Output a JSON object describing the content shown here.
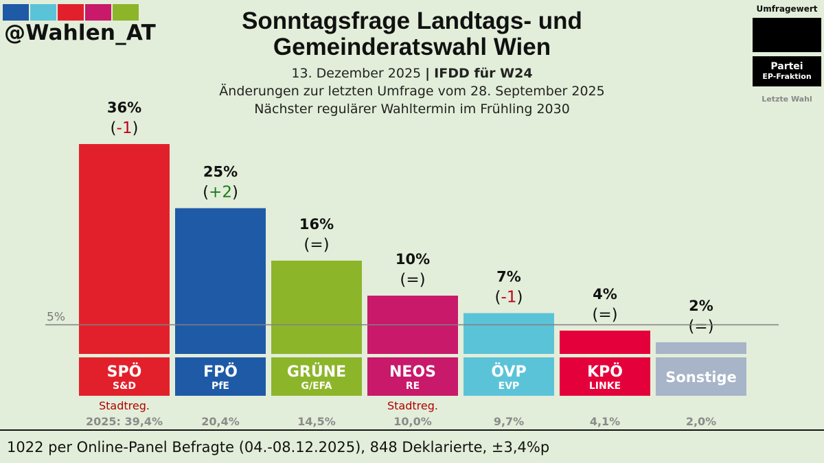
{
  "header": {
    "handle": "@Wahlen_AT",
    "logo_colors": [
      "#1f5aa6",
      "#5bc3d8",
      "#e2202c",
      "#c8196b",
      "#8db52a"
    ],
    "title_line1": "Sonntagsfrage Landtags- und",
    "title_line2": "Gemeinderatswahl Wien",
    "date": "13. Dezember 2025",
    "separator": "|",
    "source": "IFDD für W24",
    "changes_note": "Änderungen zur letzten Umfrage vom 28. September 2025",
    "next_election": "Nächster regulärer Wahltermin im Frühling 2030"
  },
  "legend": {
    "poll_value": "Umfragewert",
    "party": "Partei",
    "ep_group": "EP-Fraktion",
    "last_election": "Letzte Wahl"
  },
  "chart_data": {
    "type": "bar",
    "categories": [
      "SPÖ",
      "FPÖ",
      "GRÜNE",
      "NEOS",
      "ÖVP",
      "KPÖ",
      "Sonstige"
    ],
    "values": [
      36,
      25,
      16,
      10,
      7,
      4,
      2
    ],
    "value_labels": [
      "36%",
      "25%",
      "16%",
      "10%",
      "7%",
      "4%",
      "2%"
    ],
    "changes": [
      "-1",
      "+2",
      "=",
      "=",
      "-1",
      "=",
      "="
    ],
    "ep_groups": [
      "S&D",
      "PfE",
      "G/EFA",
      "RE",
      "EVP",
      "LINKE",
      ""
    ],
    "colors": [
      "#e2202c",
      "#1f5aa6",
      "#8db52a",
      "#c8196b",
      "#5bc3d8",
      "#e4003a",
      "#a8b4c8"
    ],
    "last_election": [
      "2025: 39,4%",
      "20,4%",
      "14,5%",
      "10,0%",
      "9,7%",
      "4,1%",
      "2,0%"
    ],
    "notes": [
      "Stadtreg.",
      "",
      "",
      "Stadtreg.",
      "",
      "",
      ""
    ],
    "threshold": 5,
    "threshold_label": "5%",
    "change_colors": {
      "up": "#1a7a1a",
      "down": "#c0001a",
      "same": "#111111"
    }
  },
  "footer": {
    "text": "1022 per Online-Panel Befragte (04.-08.12.2025), 848 Deklarierte, ±3,4%p"
  }
}
